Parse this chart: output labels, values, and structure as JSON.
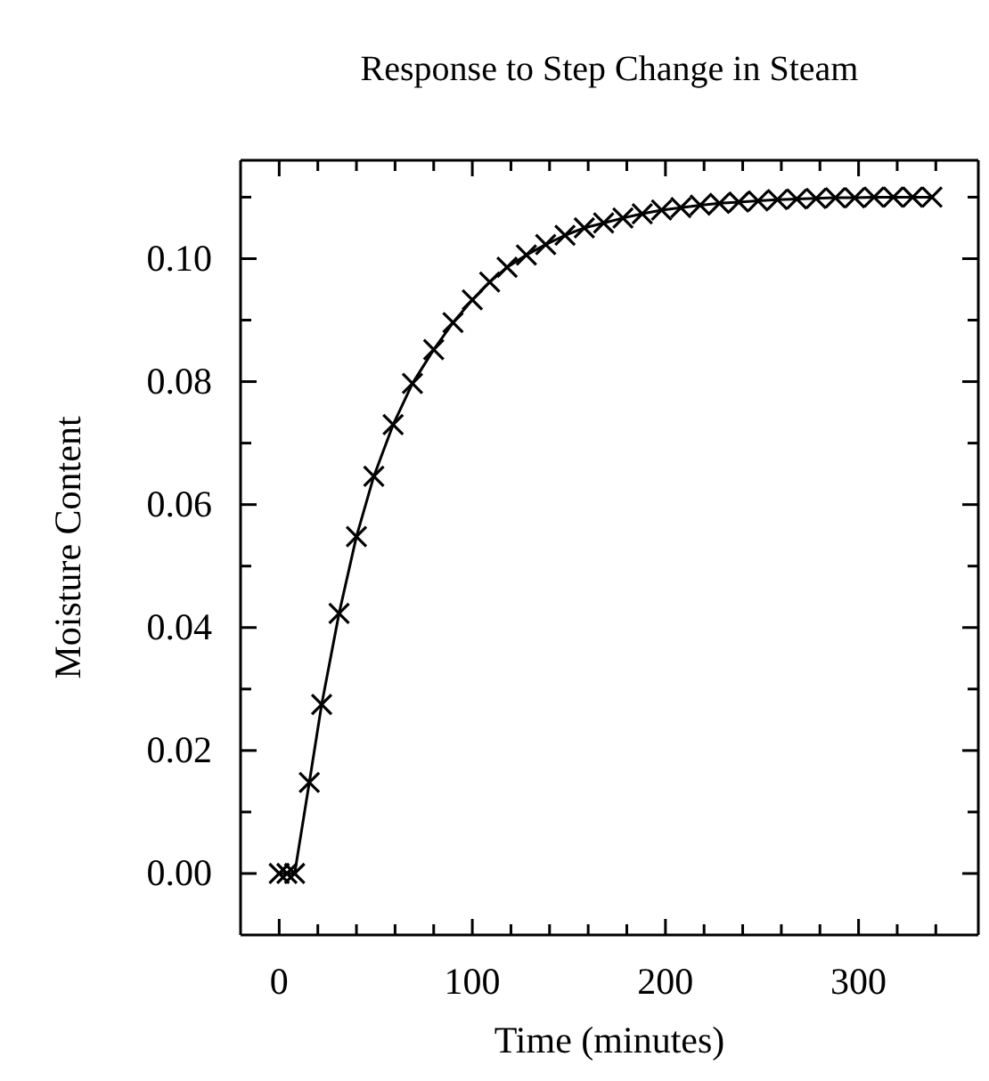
{
  "chart_data": {
    "type": "line",
    "title": "Response to Step Change in Steam",
    "xlabel": "Time (minutes)",
    "ylabel": "Moisture Content",
    "x": [
      0,
      4,
      8,
      15.6,
      22,
      31,
      40,
      49,
      59,
      69,
      80,
      90,
      100,
      109,
      118,
      128,
      138,
      148,
      158,
      168,
      178,
      188,
      198,
      208,
      218,
      228,
      238,
      248,
      258,
      268,
      278,
      288,
      298,
      308,
      318,
      328,
      338
    ],
    "series": [
      {
        "color": "#000000",
        "values": [
          0,
          0,
          0,
          0.0148,
          0.0275,
          0.0423,
          0.0548,
          0.0646,
          0.073,
          0.0797,
          0.0852,
          0.0896,
          0.0933,
          0.0962,
          0.0986,
          0.1006,
          0.1023,
          0.1038,
          0.105,
          0.1058,
          0.1066,
          0.1073,
          0.1079,
          0.1083,
          0.1087,
          0.109,
          0.1092,
          0.1094,
          0.1096,
          0.1097,
          0.1098,
          0.1099,
          0.1099,
          0.11,
          0.11,
          0.11,
          0.11
        ]
      }
    ],
    "xlim": [
      -20,
      362
    ],
    "ylim": [
      -0.01,
      0.116
    ],
    "xticks": [
      0,
      {
        "value": 20,
        "label": null
      },
      {
        "value": 40,
        "label": null
      },
      {
        "value": 60,
        "label": null
      },
      {
        "value": 80,
        "label": null
      },
      100,
      {
        "value": 120,
        "label": null
      },
      {
        "value": 140,
        "label": null
      },
      {
        "value": 160,
        "label": null
      },
      {
        "value": 180,
        "label": null
      },
      200,
      {
        "value": 220,
        "label": null
      },
      {
        "value": 240,
        "label": null
      },
      {
        "value": 260,
        "label": null
      },
      {
        "value": 280,
        "label": null
      },
      300,
      {
        "value": 320,
        "label": null
      },
      {
        "value": 340,
        "label": null
      }
    ],
    "yticks": [
      {
        "value": 0,
        "label": "0.00"
      },
      {
        "value": 0.01,
        "label": null
      },
      {
        "value": 0.02,
        "label": "0.02"
      },
      {
        "value": 0.03,
        "label": null
      },
      {
        "value": 0.04,
        "label": "0.04"
      },
      {
        "value": 0.05,
        "label": null
      },
      {
        "value": 0.06,
        "label": "0.06"
      },
      {
        "value": 0.07,
        "label": null
      },
      {
        "value": 0.08,
        "label": "0.08"
      },
      {
        "value": 0.09,
        "label": null
      },
      {
        "value": 0.1,
        "label": "0.10"
      },
      {
        "value": 0.11,
        "label": null
      }
    ],
    "marker": "cross",
    "line_style": "solid"
  }
}
